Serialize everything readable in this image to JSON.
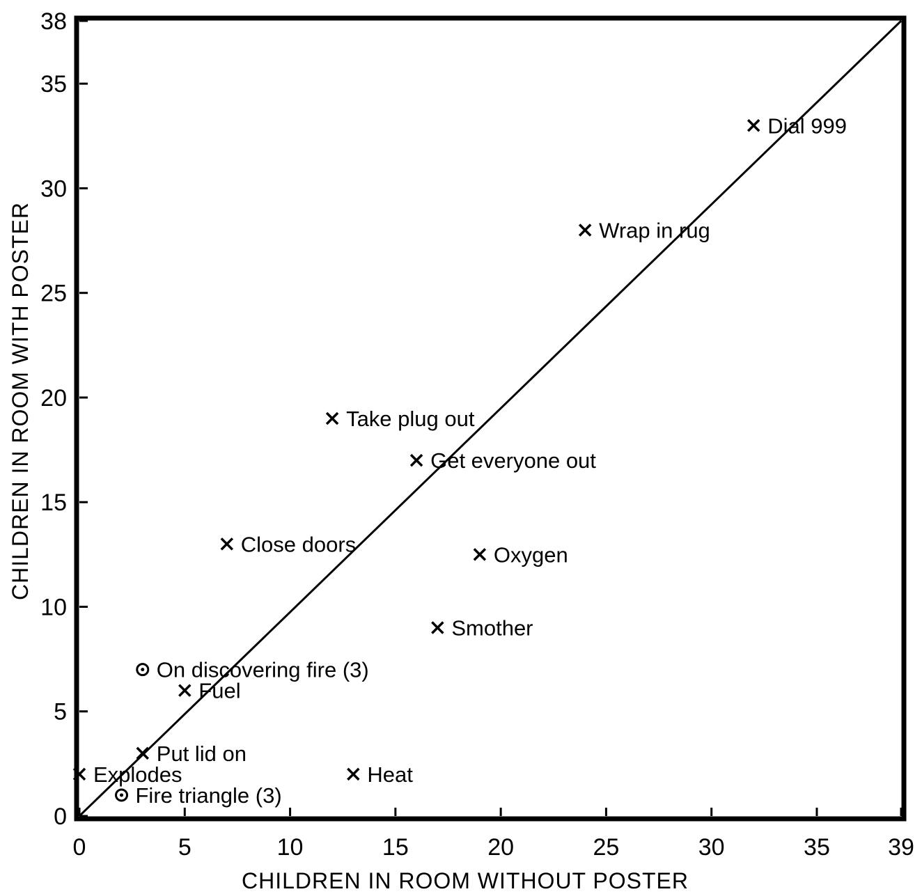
{
  "chart_data": {
    "type": "scatter",
    "title": "",
    "xlabel": "CHILDREN IN ROOM WITHOUT POSTER",
    "ylabel": "CHILDREN IN ROOM WITH POSTER",
    "xlim": [
      0,
      39
    ],
    "ylim": [
      0,
      38
    ],
    "x_ticks": [
      0,
      5,
      10,
      15,
      20,
      25,
      30,
      35,
      39
    ],
    "y_ticks": [
      0,
      5,
      10,
      15,
      20,
      25,
      30,
      35,
      38
    ],
    "grid": false,
    "reference_line": {
      "from": [
        0,
        0
      ],
      "to": [
        39,
        38
      ]
    },
    "points": [
      {
        "label": "Dial 999",
        "x": 32,
        "y": 33,
        "marker": "x"
      },
      {
        "label": "Wrap in rug",
        "x": 24,
        "y": 28,
        "marker": "x"
      },
      {
        "label": "Take plug out",
        "x": 12,
        "y": 19,
        "marker": "x"
      },
      {
        "label": "Get everyone out",
        "x": 16,
        "y": 17,
        "marker": "x"
      },
      {
        "label": "Close doors",
        "x": 7,
        "y": 13,
        "marker": "x"
      },
      {
        "label": "Oxygen",
        "x": 19,
        "y": 12.5,
        "marker": "x"
      },
      {
        "label": "Smother",
        "x": 17,
        "y": 9,
        "marker": "x"
      },
      {
        "label": "On discovering fire (3)",
        "x": 3,
        "y": 7,
        "marker": "o"
      },
      {
        "label": "Fuel",
        "x": 5,
        "y": 6,
        "marker": "x"
      },
      {
        "label": "Put lid on",
        "x": 3,
        "y": 3,
        "marker": "x"
      },
      {
        "label": "Explodes",
        "x": 0,
        "y": 2,
        "marker": "x"
      },
      {
        "label": "Heat",
        "x": 13,
        "y": 2,
        "marker": "x"
      },
      {
        "label": "Fire triangle (3)",
        "x": 2,
        "y": 1,
        "marker": "o"
      }
    ]
  }
}
